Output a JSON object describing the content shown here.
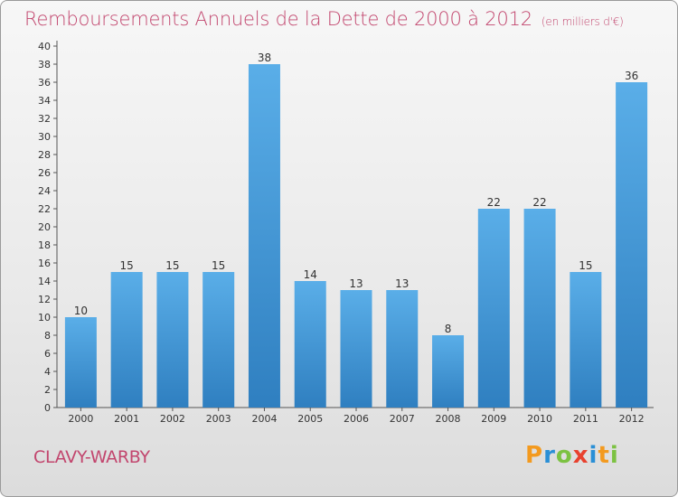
{
  "header": {
    "title": "Remboursements Annuels de la Dette de 2000 à 2012",
    "unit": "(en milliers d'€)"
  },
  "footer": {
    "commune": "CLAVY-WARBY",
    "logo_text": "Proxiti"
  },
  "colors": {
    "title": "#c2466e",
    "bar_top": "#5aaee8",
    "bar_bottom": "#2f7fc0"
  },
  "chart_data": {
    "type": "bar",
    "categories": [
      "2000",
      "2001",
      "2002",
      "2003",
      "2004",
      "2005",
      "2006",
      "2007",
      "2008",
      "2009",
      "2010",
      "2011",
      "2012"
    ],
    "values": [
      10,
      15,
      15,
      15,
      38,
      14,
      13,
      13,
      8,
      22,
      22,
      15,
      36
    ],
    "ylim": [
      0,
      40
    ],
    "ytick_step": 2,
    "grid": false,
    "data_labels": true
  }
}
